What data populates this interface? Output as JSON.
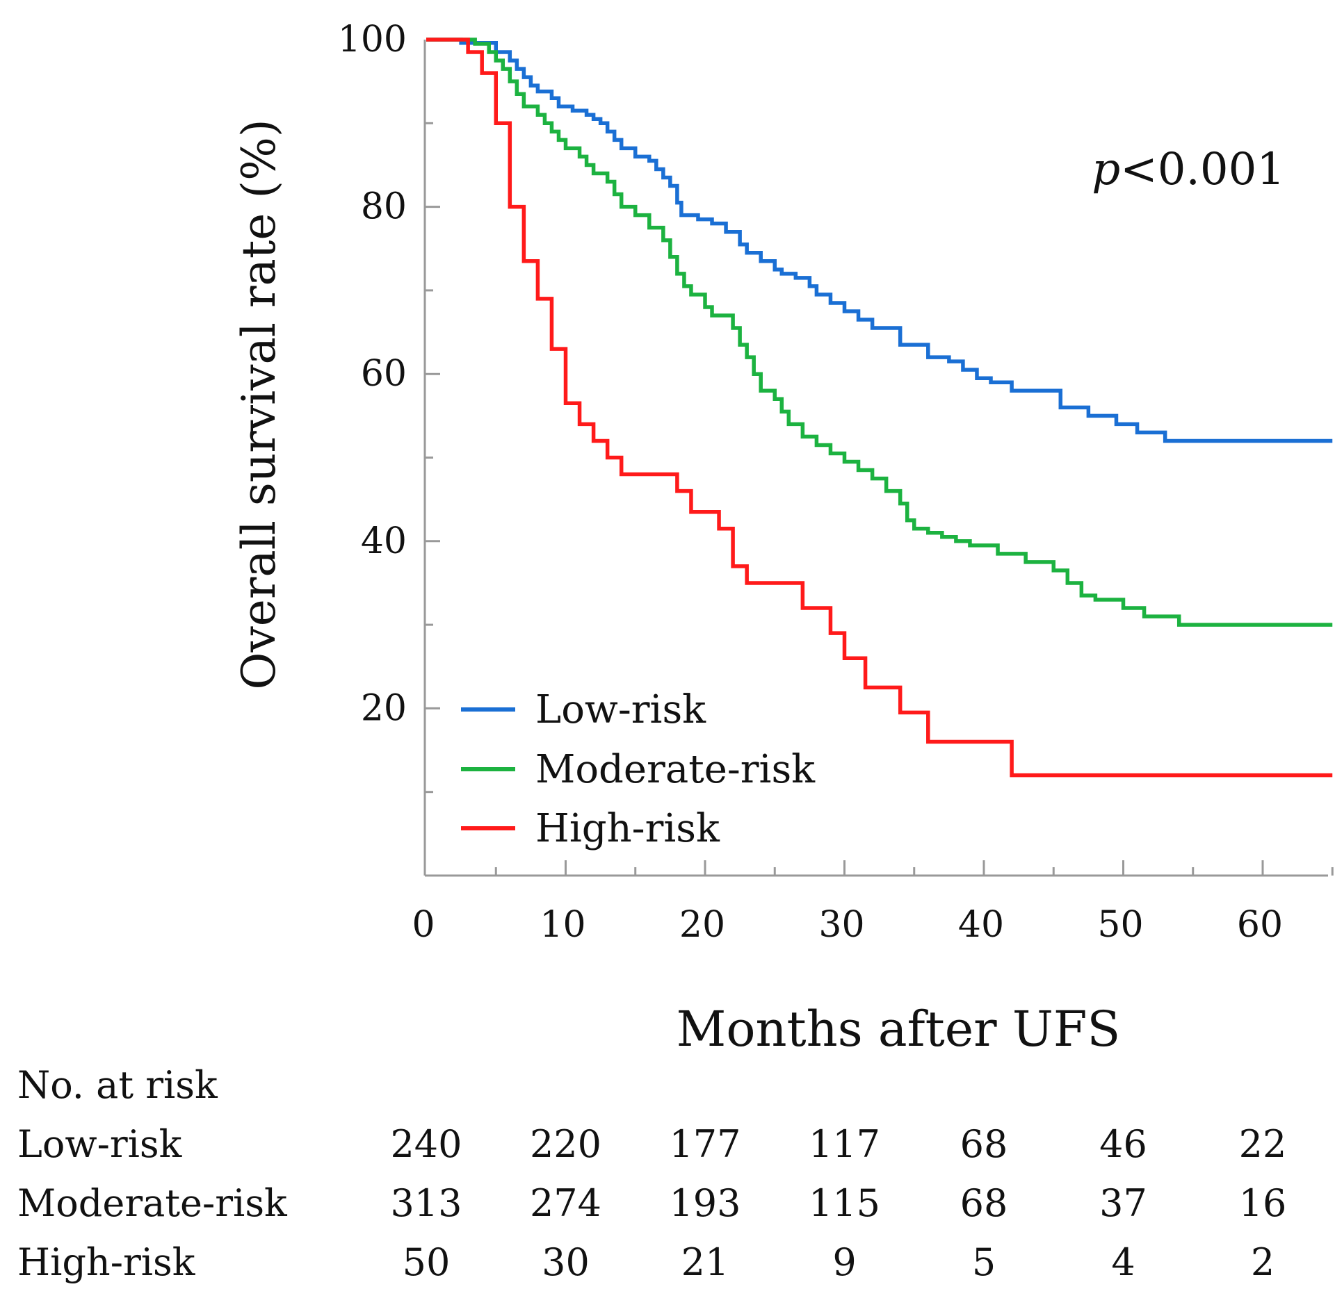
{
  "chart_data": {
    "type": "line",
    "subtype": "kaplan-meier",
    "title": "",
    "xlabel": "Months after UFS",
    "ylabel": "Overall survival rate (%)",
    "xlim": [
      0,
      65
    ],
    "ylim": [
      0,
      100
    ],
    "x_ticks": [
      0,
      10,
      20,
      30,
      40,
      50,
      60
    ],
    "y_ticks": [
      20,
      40,
      60,
      80,
      100
    ],
    "grid": false,
    "legend_position": "bottom-left",
    "annotation": {
      "prefix": "p",
      "text": "<0.001"
    },
    "series": [
      {
        "name": "Low-risk",
        "color": "#1a6fd4",
        "steps": [
          [
            0,
            100
          ],
          [
            2.5,
            99.6
          ],
          [
            5,
            98.5
          ],
          [
            6,
            97.5
          ],
          [
            6.5,
            96.5
          ],
          [
            7,
            95.5
          ],
          [
            7.5,
            94.5
          ],
          [
            8,
            93.8
          ],
          [
            9,
            93
          ],
          [
            9.5,
            92
          ],
          [
            10.5,
            91.5
          ],
          [
            11.5,
            91
          ],
          [
            12,
            90.5
          ],
          [
            12.5,
            90
          ],
          [
            13,
            89
          ],
          [
            13.5,
            88
          ],
          [
            14,
            87
          ],
          [
            15,
            86
          ],
          [
            16,
            85.5
          ],
          [
            16.5,
            84.5
          ],
          [
            17,
            83.5
          ],
          [
            17.5,
            82.5
          ],
          [
            18,
            80.5
          ],
          [
            18.3,
            79
          ],
          [
            19.5,
            78.5
          ],
          [
            20.5,
            78
          ],
          [
            21.5,
            77
          ],
          [
            22.5,
            75.5
          ],
          [
            23,
            74.5
          ],
          [
            24,
            73.5
          ],
          [
            25,
            72.5
          ],
          [
            25.5,
            72
          ],
          [
            26.5,
            71.5
          ],
          [
            27.5,
            70.5
          ],
          [
            28,
            69.5
          ],
          [
            29,
            68.5
          ],
          [
            30,
            67.5
          ],
          [
            31,
            66.5
          ],
          [
            32,
            65.5
          ],
          [
            34,
            63.5
          ],
          [
            36,
            62
          ],
          [
            37.5,
            61.5
          ],
          [
            38.5,
            60.5
          ],
          [
            39.5,
            59.5
          ],
          [
            40.5,
            59
          ],
          [
            42,
            58
          ],
          [
            45.5,
            56
          ],
          [
            47.5,
            55
          ],
          [
            49.5,
            54
          ],
          [
            51,
            53
          ],
          [
            53,
            52
          ],
          [
            65,
            52
          ]
        ]
      },
      {
        "name": "Moderate-risk",
        "color": "#1cb240",
        "steps": [
          [
            0,
            100
          ],
          [
            3.5,
            99.5
          ],
          [
            4.5,
            98.5
          ],
          [
            5,
            97.5
          ],
          [
            5.5,
            96.5
          ],
          [
            6,
            95
          ],
          [
            6.5,
            93.5
          ],
          [
            7,
            92
          ],
          [
            8,
            91
          ],
          [
            8.5,
            90
          ],
          [
            9,
            89
          ],
          [
            9.5,
            88
          ],
          [
            10,
            87
          ],
          [
            11,
            86
          ],
          [
            11.5,
            85
          ],
          [
            12,
            84
          ],
          [
            13,
            83
          ],
          [
            13.5,
            81.5
          ],
          [
            14,
            80
          ],
          [
            15,
            79
          ],
          [
            16,
            77.5
          ],
          [
            17,
            76
          ],
          [
            17.5,
            74
          ],
          [
            18,
            72
          ],
          [
            18.5,
            70.5
          ],
          [
            19,
            69.5
          ],
          [
            20,
            68
          ],
          [
            20.5,
            67
          ],
          [
            22,
            65.5
          ],
          [
            22.5,
            63.5
          ],
          [
            23,
            62
          ],
          [
            23.5,
            60
          ],
          [
            24,
            58
          ],
          [
            25,
            57
          ],
          [
            25.5,
            55.5
          ],
          [
            26,
            54
          ],
          [
            27,
            52.5
          ],
          [
            28,
            51.5
          ],
          [
            29,
            50.5
          ],
          [
            30,
            49.5
          ],
          [
            31,
            48.5
          ],
          [
            32,
            47.5
          ],
          [
            33,
            46
          ],
          [
            34,
            44.5
          ],
          [
            34.5,
            42.5
          ],
          [
            35,
            41.5
          ],
          [
            36,
            41
          ],
          [
            37,
            40.5
          ],
          [
            38,
            40
          ],
          [
            39,
            39.5
          ],
          [
            41,
            38.5
          ],
          [
            43,
            37.5
          ],
          [
            45,
            36.5
          ],
          [
            46,
            35
          ],
          [
            47,
            33.5
          ],
          [
            48,
            33
          ],
          [
            50,
            32
          ],
          [
            51.5,
            31
          ],
          [
            54,
            30
          ],
          [
            65,
            30
          ]
        ]
      },
      {
        "name": "High-risk",
        "color": "#ff1a1a",
        "steps": [
          [
            0,
            100
          ],
          [
            3,
            98.5
          ],
          [
            4,
            96
          ],
          [
            5,
            90
          ],
          [
            6,
            80
          ],
          [
            7,
            73.5
          ],
          [
            8,
            69
          ],
          [
            9,
            63
          ],
          [
            10,
            56.5
          ],
          [
            11,
            54
          ],
          [
            12,
            52
          ],
          [
            13,
            50
          ],
          [
            14,
            48
          ],
          [
            18,
            46
          ],
          [
            19,
            43.5
          ],
          [
            21,
            41.5
          ],
          [
            22,
            37
          ],
          [
            23,
            35
          ],
          [
            27,
            32
          ],
          [
            29,
            29
          ],
          [
            30,
            26
          ],
          [
            31.5,
            22.5
          ],
          [
            34,
            19.5
          ],
          [
            36,
            16
          ],
          [
            42,
            12
          ],
          [
            65,
            12
          ]
        ]
      }
    ],
    "at_risk": {
      "title": "No. at risk",
      "times": [
        0,
        10,
        20,
        30,
        40,
        50,
        60
      ],
      "rows": [
        {
          "label": "Low-risk",
          "values": [
            "240",
            "220",
            "177",
            "117",
            "68",
            "46",
            "22"
          ]
        },
        {
          "label": "Moderate-risk",
          "values": [
            "313",
            "274",
            "193",
            "115",
            "68",
            "37",
            "16"
          ]
        },
        {
          "label": "High-risk",
          "values": [
            "50",
            "30",
            "21",
            "9",
            "5",
            "4",
            "2"
          ]
        }
      ]
    }
  }
}
